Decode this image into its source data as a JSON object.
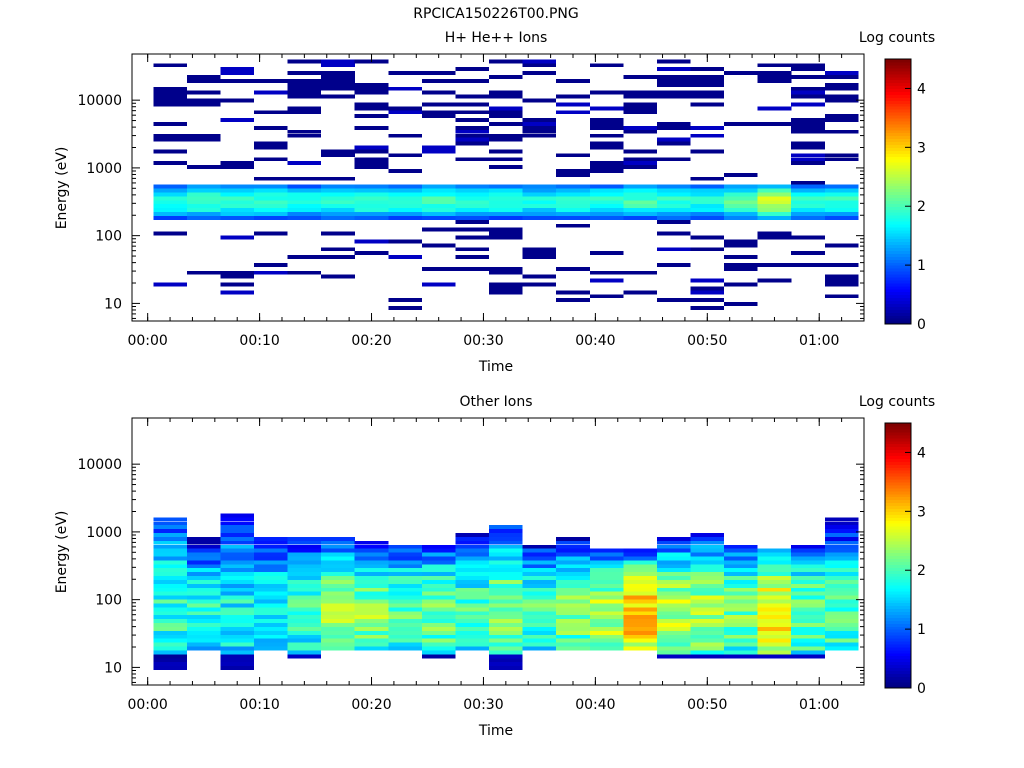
{
  "figure": {
    "title": "RPCICA150226T00.PNG"
  },
  "chart_data": [
    {
      "type": "heatmap",
      "title": "H+ He++ Ions",
      "xlabel": "Time",
      "ylabel": "Energy (eV)",
      "y_scale": "log",
      "x_ticks": [
        "00:00",
        "00:10",
        "00:20",
        "00:30",
        "00:40",
        "00:50",
        "01:00"
      ],
      "y_ticks": [
        "10",
        "100",
        "1000",
        "10000"
      ],
      "colorbar": {
        "label": "Log counts",
        "ticks": [
          "0",
          "1",
          "2",
          "3",
          "4"
        ],
        "range": [
          0,
          4.5
        ]
      },
      "time_columns": [
        "00:02",
        "00:05",
        "00:08",
        "00:11",
        "00:14",
        "00:17",
        "00:20",
        "00:23",
        "00:26",
        "00:29",
        "00:32",
        "00:35",
        "00:38",
        "00:41",
        "00:44",
        "00:47",
        "00:50",
        "00:53",
        "00:56",
        "00:59",
        "01:02"
      ],
      "core_band": {
        "energy_range_eV": [
          180,
          600
        ],
        "peak_log_counts": [
          1.8,
          2.0,
          1.9,
          1.9,
          1.8,
          1.9,
          2.0,
          1.9,
          2.0,
          1.9,
          1.9,
          1.8,
          1.9,
          1.9,
          2.0,
          1.9,
          1.8,
          2.1,
          2.6,
          1.9,
          1.9
        ]
      },
      "sparse_levels": {
        "energy_range_eV": [
          10,
          40000
        ],
        "log_counts": [
          0.0,
          0.3
        ]
      }
    },
    {
      "type": "heatmap",
      "title": "Other Ions",
      "xlabel": "Time",
      "ylabel": "Energy (eV)",
      "y_scale": "log",
      "x_ticks": [
        "00:00",
        "00:10",
        "00:20",
        "00:30",
        "00:40",
        "00:50",
        "01:00"
      ],
      "y_ticks": [
        "10",
        "100",
        "1000",
        "10000"
      ],
      "colorbar": {
        "label": "Log counts",
        "ticks": [
          "0",
          "1",
          "2",
          "3",
          "4"
        ],
        "range": [
          0,
          4.5
        ]
      },
      "time_columns": [
        "00:02",
        "00:05",
        "00:08",
        "00:11",
        "00:14",
        "00:17",
        "00:20",
        "00:23",
        "00:26",
        "00:29",
        "00:32",
        "00:35",
        "00:38",
        "00:41",
        "00:44",
        "00:47",
        "00:50",
        "00:53",
        "00:56",
        "00:59",
        "01:02"
      ],
      "column_top_eV": [
        1700,
        800,
        1800,
        800,
        900,
        900,
        700,
        650,
        650,
        950,
        1200,
        650,
        900,
        600,
        550,
        800,
        950,
        650,
        600,
        650,
        1600
      ],
      "column_bottom_eV": [
        9,
        17,
        9,
        17,
        14,
        17,
        17,
        17,
        14,
        17,
        9,
        17,
        17,
        17,
        17,
        14,
        14,
        14,
        14,
        14,
        17
      ],
      "peak_log_counts": [
        1.9,
        1.8,
        1.7,
        1.8,
        1.9,
        2.4,
        2.3,
        2.1,
        2.2,
        2.0,
        2.3,
        2.0,
        2.2,
        2.5,
        3.1,
        2.5,
        2.4,
        2.2,
        2.9,
        2.2,
        2.0
      ]
    }
  ]
}
